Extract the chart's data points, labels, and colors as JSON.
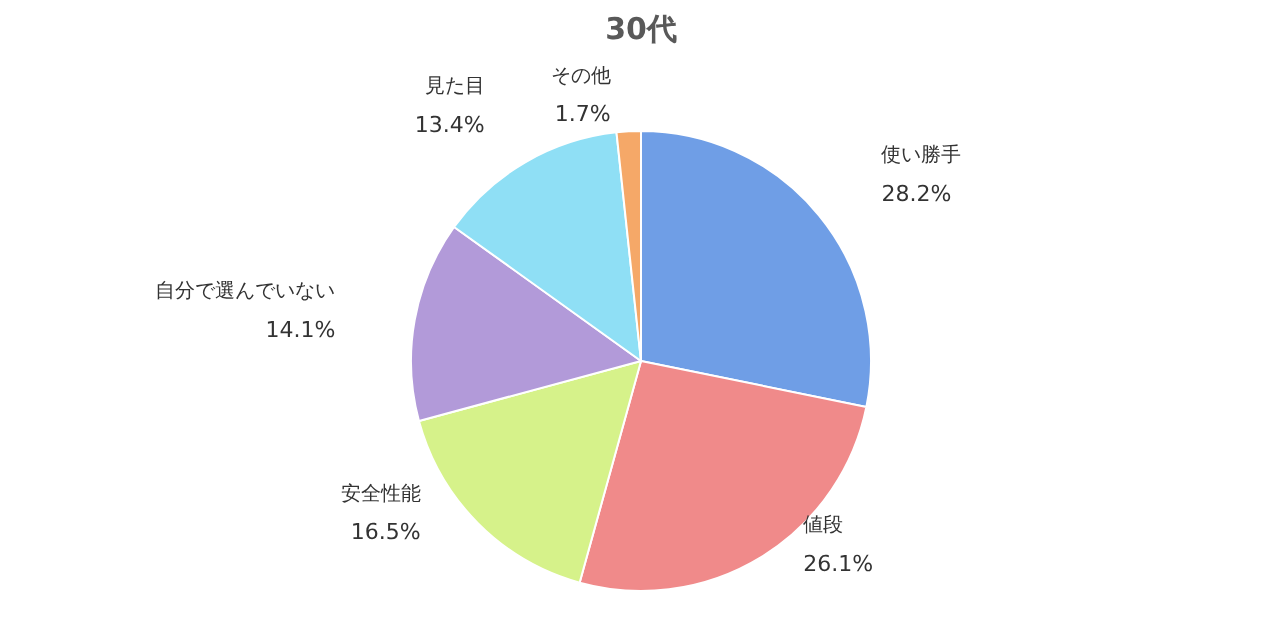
{
  "chart_data": {
    "type": "pie",
    "title": "30代",
    "categories": [
      "使い勝手",
      "値段",
      "安全性能",
      "自分で選んでいない",
      "見た目",
      "その他"
    ],
    "values": [
      28.2,
      26.1,
      16.5,
      14.1,
      13.4,
      1.7
    ],
    "colors": [
      "#6f9ee6",
      "#f08a8a",
      "#d6f28a",
      "#b29ad9",
      "#8fdff5",
      "#f5a868"
    ],
    "value_labels": [
      "28.2%",
      "26.1%",
      "16.5%",
      "14.1%",
      "13.4%",
      "1.7%"
    ]
  }
}
